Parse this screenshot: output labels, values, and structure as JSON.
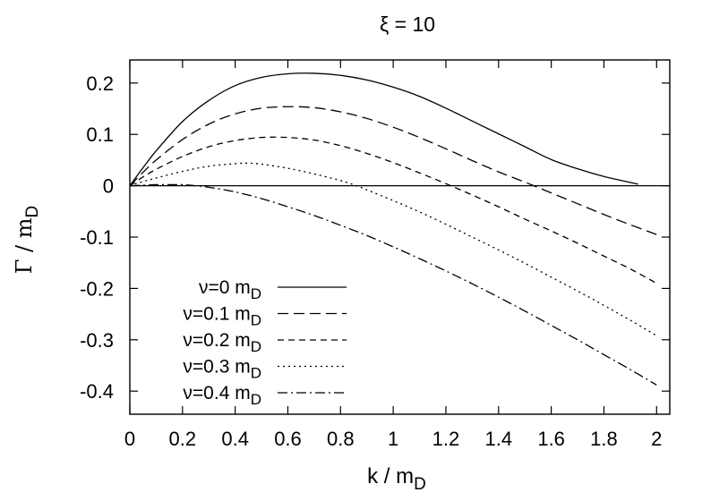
{
  "chart_data": {
    "type": "line",
    "title": "ξ = 10",
    "xlabel_main": "k / m",
    "xlabel_sub": "D",
    "ylabel_main": "Γ / m",
    "ylabel_sub": "D",
    "xlim": [
      0,
      2.05
    ],
    "ylim": [
      -0.445,
      0.245
    ],
    "xticks": [
      0,
      0.2,
      0.4,
      0.6,
      0.8,
      1,
      1.2,
      1.4,
      1.6,
      1.8,
      2
    ],
    "xtick_labels": [
      "0",
      "0.2",
      "0.4",
      "0.6",
      "0.8",
      "1",
      "1.2",
      "1.4",
      "1.6",
      "1.8",
      "2"
    ],
    "yticks": [
      0.2,
      0.1,
      0,
      -0.1,
      -0.2,
      -0.3,
      -0.4
    ],
    "ytick_labels": [
      "0.2",
      "0.1",
      "0",
      "-0.1",
      "-0.2",
      "-0.3",
      "-0.4"
    ],
    "zero_line": true,
    "legend_position": "bottom-left",
    "series": [
      {
        "name": "ν=0 m",
        "name_sub": "D",
        "dash": "",
        "x": [
          0,
          0.05,
          0.1,
          0.2,
          0.3,
          0.4,
          0.5,
          0.6,
          0.7,
          0.8,
          0.9,
          1.0,
          1.1,
          1.2,
          1.3,
          1.4,
          1.5,
          1.6,
          1.7,
          1.8,
          1.93
        ],
        "y": [
          0,
          0.035,
          0.068,
          0.125,
          0.166,
          0.195,
          0.211,
          0.218,
          0.219,
          0.215,
          0.206,
          0.192,
          0.174,
          0.151,
          0.126,
          0.101,
          0.076,
          0.051,
          0.033,
          0.018,
          0.003
        ]
      },
      {
        "name": "ν=0.1 m",
        "name_sub": "D",
        "dash": "12,6",
        "x": [
          0,
          0.05,
          0.1,
          0.2,
          0.3,
          0.4,
          0.5,
          0.6,
          0.7,
          0.8,
          0.9,
          1.0,
          1.1,
          1.2,
          1.3,
          1.4,
          1.5,
          1.6,
          1.7,
          1.8,
          1.9,
          2.0
        ],
        "y": [
          0,
          0.026,
          0.05,
          0.09,
          0.12,
          0.14,
          0.151,
          0.154,
          0.152,
          0.144,
          0.131,
          0.114,
          0.094,
          0.072,
          0.049,
          0.027,
          0.007,
          -0.014,
          -0.035,
          -0.056,
          -0.076,
          -0.095
        ]
      },
      {
        "name": "ν=0.2 m",
        "name_sub": "D",
        "dash": "7,5",
        "x": [
          0,
          0.05,
          0.1,
          0.2,
          0.3,
          0.4,
          0.5,
          0.6,
          0.7,
          0.8,
          0.9,
          1.0,
          1.1,
          1.2,
          1.3,
          1.4,
          1.5,
          1.6,
          1.7,
          1.8,
          1.9,
          2.0
        ],
        "y": [
          0,
          0.017,
          0.032,
          0.057,
          0.076,
          0.088,
          0.094,
          0.094,
          0.089,
          0.078,
          0.063,
          0.045,
          0.025,
          0.004,
          -0.018,
          -0.041,
          -0.065,
          -0.088,
          -0.112,
          -0.137,
          -0.162,
          -0.19
        ]
      },
      {
        "name": "ν=0.3 m",
        "name_sub": "D",
        "dash": "2,4",
        "x": [
          0,
          0.05,
          0.1,
          0.2,
          0.3,
          0.4,
          0.45,
          0.5,
          0.6,
          0.7,
          0.8,
          0.86,
          0.9,
          1.0,
          1.1,
          1.2,
          1.3,
          1.4,
          1.5,
          1.6,
          1.7,
          1.8,
          1.9,
          2.0
        ],
        "y": [
          0,
          0.008,
          0.015,
          0.028,
          0.038,
          0.043,
          0.044,
          0.042,
          0.034,
          0.023,
          0.01,
          0.0,
          -0.008,
          -0.029,
          -0.051,
          -0.075,
          -0.1,
          -0.125,
          -0.151,
          -0.178,
          -0.205,
          -0.233,
          -0.262,
          -0.292
        ]
      },
      {
        "name": "ν=0.4 m",
        "name_sub": "D",
        "dash": "11,4,2,4",
        "x": [
          0,
          0.05,
          0.1,
          0.15,
          0.2,
          0.25,
          0.3,
          0.4,
          0.5,
          0.6,
          0.7,
          0.8,
          0.9,
          1.0,
          1.1,
          1.2,
          1.3,
          1.4,
          1.5,
          1.6,
          1.7,
          1.8,
          1.9,
          2.0
        ],
        "y": [
          0,
          0.001,
          0.002,
          0.002,
          0.002,
          0.0,
          -0.003,
          -0.012,
          -0.025,
          -0.041,
          -0.058,
          -0.077,
          -0.097,
          -0.119,
          -0.142,
          -0.166,
          -0.191,
          -0.217,
          -0.244,
          -0.272,
          -0.3,
          -0.329,
          -0.358,
          -0.388
        ]
      }
    ]
  }
}
